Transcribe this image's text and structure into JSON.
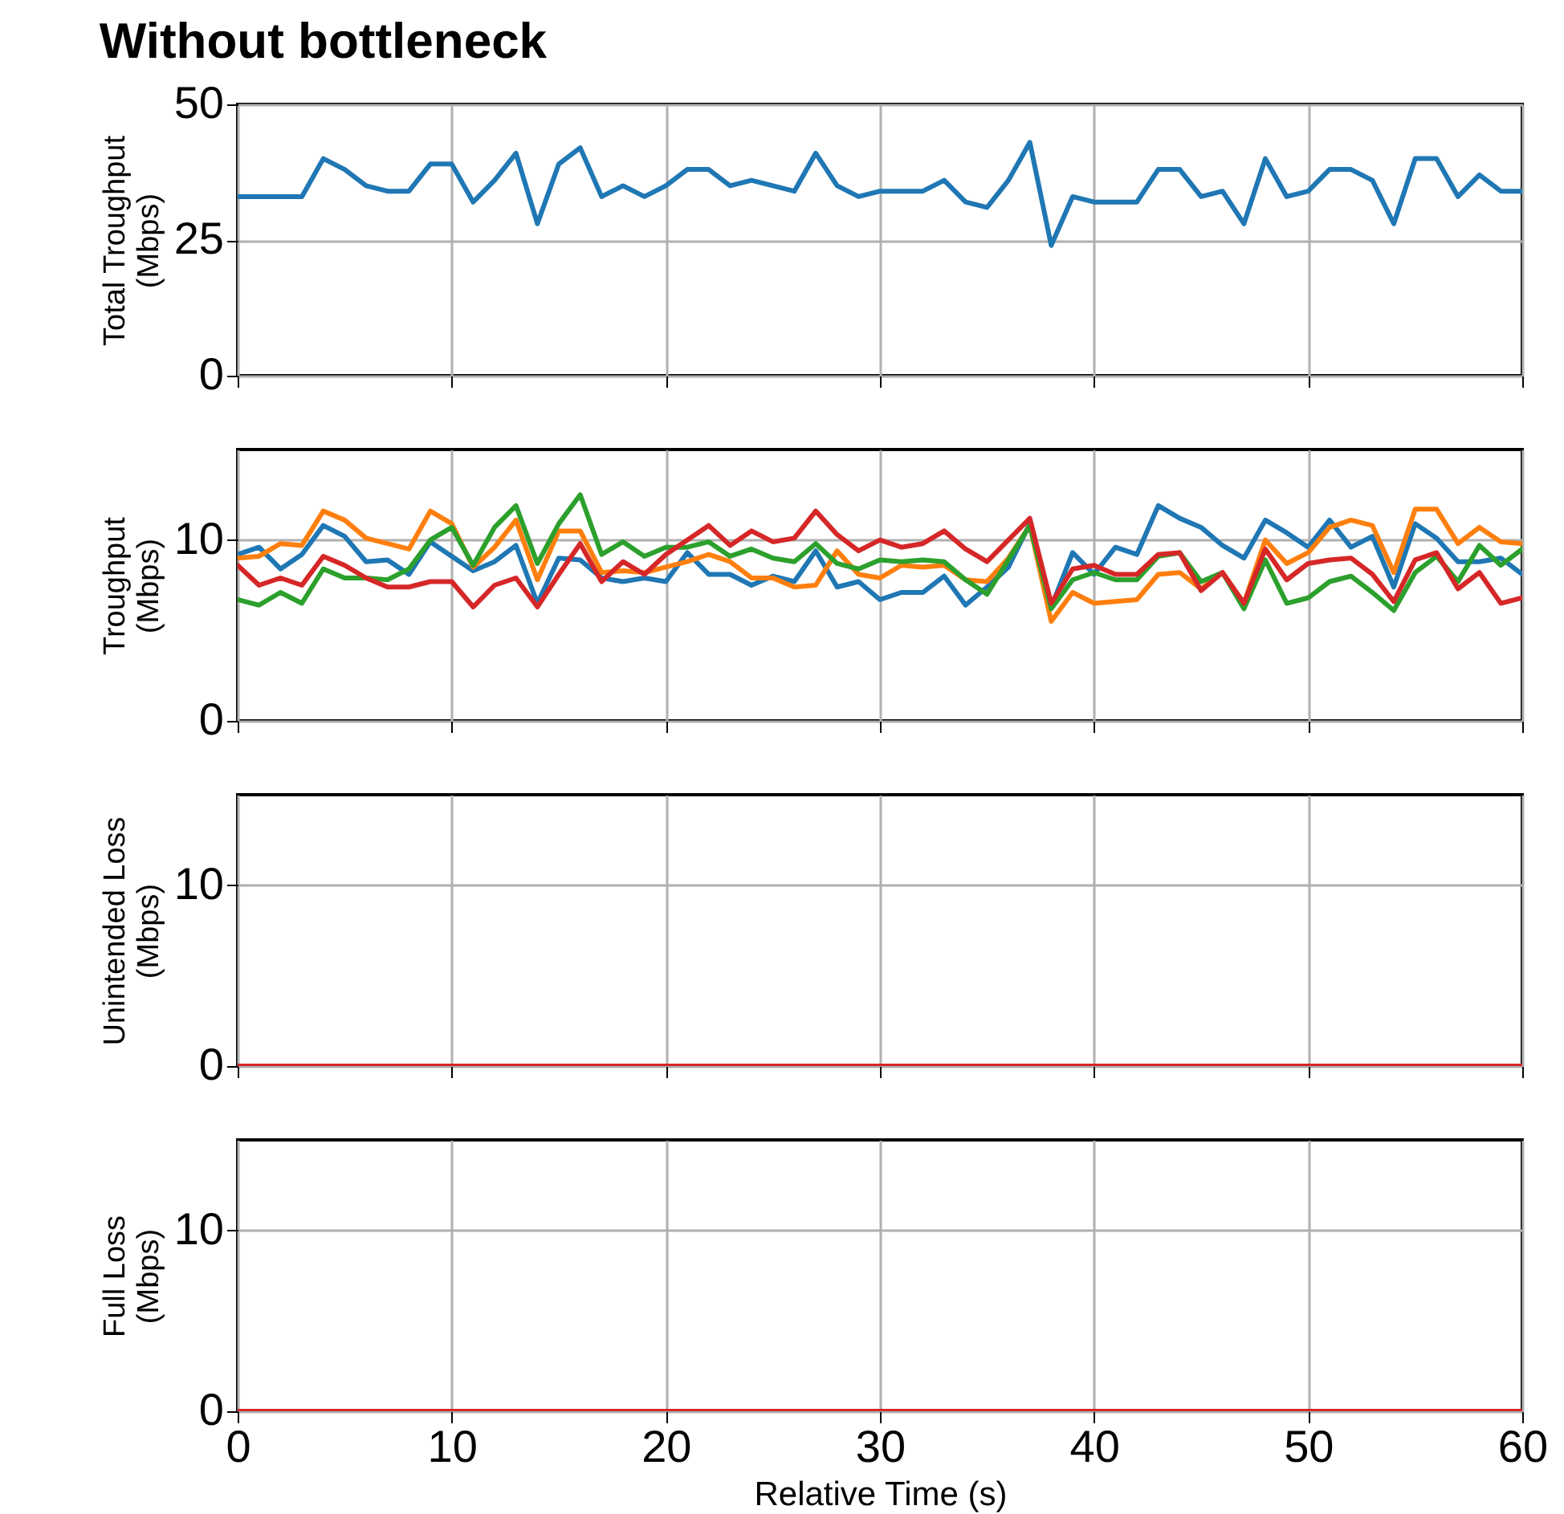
{
  "chart_data": [
    {
      "type": "line",
      "title": "Without bottleneck",
      "ylabel": "Total Troughput\n(Mbps)",
      "xlim": [
        0,
        60
      ],
      "xticks": [
        0,
        10,
        20,
        30,
        40,
        50,
        60
      ],
      "ylim": [
        0,
        50
      ],
      "yticks": [
        0,
        25,
        50
      ],
      "grid": true,
      "tick_labels": "y",
      "x": [
        0,
        1,
        2,
        3,
        4,
        5,
        6,
        7,
        8,
        9,
        10,
        11,
        12,
        13,
        14,
        15,
        16,
        17,
        18,
        19,
        20,
        21,
        22,
        23,
        24,
        25,
        26,
        27,
        28,
        29,
        30,
        31,
        32,
        33,
        34,
        35,
        36,
        37,
        38,
        39,
        40,
        41,
        42,
        43,
        44,
        45,
        46,
        47,
        48,
        49,
        50,
        51,
        52,
        53,
        54,
        55,
        56,
        57,
        58,
        59,
        60
      ],
      "series": [
        {
          "color": "#1f77b4",
          "values": [
            33,
            33,
            33,
            33,
            40,
            38,
            35,
            34,
            34,
            39,
            39,
            32,
            36,
            41,
            28,
            39,
            42,
            33,
            35,
            33,
            35,
            38,
            38,
            35,
            36,
            35,
            34,
            41,
            35,
            33,
            34,
            34,
            34,
            36,
            32,
            31,
            36,
            43,
            24,
            33,
            32,
            32,
            32,
            38,
            38,
            33,
            34,
            28,
            40,
            33,
            34,
            38,
            38,
            36,
            28,
            40,
            40,
            33,
            37,
            34,
            34
          ]
        }
      ]
    },
    {
      "type": "line",
      "ylabel": "Troughput\n(Mbps)",
      "xlim": [
        0,
        60
      ],
      "xticks": [
        0,
        10,
        20,
        30,
        40,
        50,
        60
      ],
      "ylim": [
        0,
        15
      ],
      "yticks": [
        0,
        10
      ],
      "grid": true,
      "tick_labels": "y",
      "x": [
        0,
        1,
        2,
        3,
        4,
        5,
        6,
        7,
        8,
        9,
        10,
        11,
        12,
        13,
        14,
        15,
        16,
        17,
        18,
        19,
        20,
        21,
        22,
        23,
        24,
        25,
        26,
        27,
        28,
        29,
        30,
        31,
        32,
        33,
        34,
        35,
        36,
        37,
        38,
        39,
        40,
        41,
        42,
        43,
        44,
        45,
        46,
        47,
        48,
        49,
        50,
        51,
        52,
        53,
        54,
        55,
        56,
        57,
        58,
        59,
        60
      ],
      "series": [
        {
          "color": "#1f77b4",
          "values": [
            9.2,
            9.6,
            8.4,
            9.2,
            10.8,
            10.2,
            8.8,
            8.9,
            8.1,
            9.9,
            9.1,
            8.3,
            8.8,
            9.7,
            6.5,
            9.0,
            8.9,
            7.9,
            7.7,
            7.9,
            7.7,
            9.3,
            8.1,
            8.1,
            7.5,
            8.0,
            7.7,
            9.4,
            7.4,
            7.7,
            6.7,
            7.1,
            7.1,
            8.0,
            6.4,
            7.4,
            8.5,
            10.9,
            6.3,
            9.3,
            8.1,
            9.6,
            9.2,
            11.9,
            11.2,
            10.7,
            9.7,
            9.0,
            11.1,
            10.4,
            9.6,
            11.1,
            9.6,
            10.2,
            7.4,
            10.9,
            10.1,
            8.8,
            8.8,
            9.0,
            8.1
          ]
        },
        {
          "color": "#ff7f0e",
          "values": [
            9.0,
            9.1,
            9.8,
            9.7,
            11.6,
            11.1,
            10.1,
            9.8,
            9.5,
            11.6,
            10.9,
            8.5,
            9.6,
            11.1,
            7.8,
            10.5,
            10.5,
            8.2,
            8.3,
            8.2,
            8.5,
            8.8,
            9.2,
            8.8,
            7.9,
            7.9,
            7.4,
            7.5,
            9.4,
            8.1,
            7.9,
            8.6,
            8.5,
            8.6,
            7.8,
            7.7,
            9.0,
            10.8,
            5.5,
            7.1,
            6.5,
            6.6,
            6.7,
            8.1,
            8.2,
            7.3,
            8.2,
            6.5,
            10.0,
            8.7,
            9.3,
            10.7,
            11.1,
            10.8,
            8.2,
            11.7,
            11.7,
            9.8,
            10.7,
            9.9,
            9.8
          ]
        },
        {
          "color": "#2ca02c",
          "values": [
            6.7,
            6.4,
            7.1,
            6.5,
            8.4,
            7.9,
            7.9,
            7.8,
            8.4,
            10.0,
            10.7,
            8.6,
            10.7,
            11.9,
            8.7,
            10.9,
            12.5,
            9.2,
            9.9,
            9.1,
            9.6,
            9.6,
            9.9,
            9.1,
            9.5,
            9.0,
            8.8,
            9.8,
            8.7,
            8.4,
            8.9,
            8.8,
            8.9,
            8.8,
            7.8,
            7.0,
            8.9,
            10.8,
            6.2,
            7.8,
            8.2,
            7.8,
            7.8,
            9.1,
            9.3,
            7.7,
            8.2,
            6.2,
            8.9,
            6.5,
            6.8,
            7.7,
            8.0,
            7.1,
            6.1,
            8.2,
            9.1,
            7.7,
            9.7,
            8.6,
            9.5
          ]
        },
        {
          "color": "#d62728",
          "values": [
            8.6,
            7.5,
            7.9,
            7.5,
            9.1,
            8.6,
            7.9,
            7.4,
            7.4,
            7.7,
            7.7,
            6.3,
            7.5,
            7.9,
            6.3,
            8.1,
            9.8,
            7.7,
            8.8,
            8.1,
            9.2,
            10.0,
            10.8,
            9.7,
            10.5,
            9.9,
            10.1,
            11.6,
            10.3,
            9.4,
            10.0,
            9.6,
            9.8,
            10.5,
            9.5,
            8.8,
            10.0,
            11.2,
            6.5,
            8.4,
            8.6,
            8.1,
            8.1,
            9.2,
            9.3,
            7.2,
            8.2,
            6.5,
            9.5,
            7.8,
            8.7,
            8.9,
            9.0,
            8.1,
            6.6,
            8.9,
            9.3,
            7.3,
            8.2,
            6.5,
            6.8
          ]
        }
      ]
    },
    {
      "type": "line",
      "ylabel": "Unintended Loss\n(Mbps)",
      "xlim": [
        0,
        60
      ],
      "xticks": [
        0,
        10,
        20,
        30,
        40,
        50,
        60
      ],
      "ylim": [
        0,
        15
      ],
      "yticks": [
        0,
        10
      ],
      "grid": true,
      "tick_labels": "y",
      "x": [
        0,
        1,
        2,
        3,
        4,
        5,
        6,
        7,
        8,
        9,
        10,
        11,
        12,
        13,
        14,
        15,
        16,
        17,
        18,
        19,
        20,
        21,
        22,
        23,
        24,
        25,
        26,
        27,
        28,
        29,
        30,
        31,
        32,
        33,
        34,
        35,
        36,
        37,
        38,
        39,
        40,
        41,
        42,
        43,
        44,
        45,
        46,
        47,
        48,
        49,
        50,
        51,
        52,
        53,
        54,
        55,
        56,
        57,
        58,
        59,
        60
      ],
      "series": [
        {
          "color": "#d62728",
          "values": [
            0,
            0,
            0,
            0,
            0,
            0,
            0,
            0,
            0,
            0,
            0,
            0,
            0,
            0,
            0,
            0,
            0,
            0,
            0,
            0,
            0,
            0,
            0,
            0,
            0,
            0,
            0,
            0,
            0,
            0,
            0,
            0,
            0,
            0,
            0,
            0,
            0,
            0,
            0,
            0,
            0,
            0,
            0,
            0,
            0,
            0,
            0,
            0,
            0,
            0,
            0,
            0,
            0,
            0,
            0,
            0,
            0,
            0,
            0,
            0,
            0
          ]
        }
      ]
    },
    {
      "type": "line",
      "ylabel": "Full Loss\n(Mbps)",
      "xlabel": "Relative Time (s)",
      "xlim": [
        0,
        60
      ],
      "xticks": [
        0,
        10,
        20,
        30,
        40,
        50,
        60
      ],
      "ylim": [
        0,
        15
      ],
      "yticks": [
        0,
        10
      ],
      "grid": true,
      "x": [
        0,
        1,
        2,
        3,
        4,
        5,
        6,
        7,
        8,
        9,
        10,
        11,
        12,
        13,
        14,
        15,
        16,
        17,
        18,
        19,
        20,
        21,
        22,
        23,
        24,
        25,
        26,
        27,
        28,
        29,
        30,
        31,
        32,
        33,
        34,
        35,
        36,
        37,
        38,
        39,
        40,
        41,
        42,
        43,
        44,
        45,
        46,
        47,
        48,
        49,
        50,
        51,
        52,
        53,
        54,
        55,
        56,
        57,
        58,
        59,
        60
      ],
      "series": [
        {
          "color": "#d62728",
          "values": [
            0,
            0,
            0,
            0,
            0,
            0,
            0,
            0,
            0,
            0,
            0,
            0,
            0,
            0,
            0,
            0,
            0,
            0,
            0,
            0,
            0,
            0,
            0,
            0,
            0,
            0,
            0,
            0,
            0,
            0,
            0,
            0,
            0,
            0,
            0,
            0,
            0,
            0,
            0,
            0,
            0,
            0,
            0,
            0,
            0,
            0,
            0,
            0,
            0,
            0,
            0,
            0,
            0,
            0,
            0,
            0,
            0,
            0,
            0,
            0,
            0
          ]
        }
      ]
    }
  ]
}
